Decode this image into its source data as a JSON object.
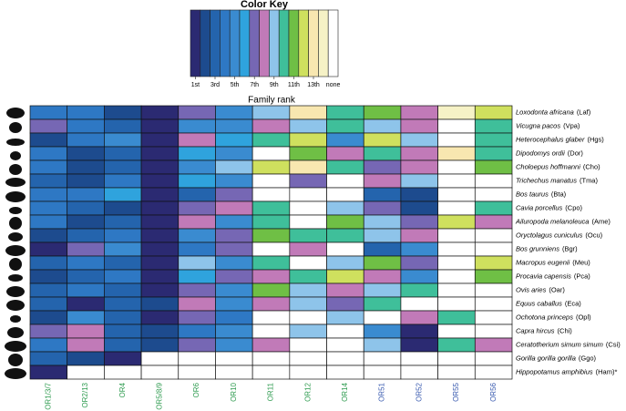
{
  "chart_data": {
    "type": "heatmap",
    "title": "Family rank",
    "colorscale": {
      "title": "Color Key",
      "colors": [
        "#2b2a72",
        "#1d4b8e",
        "#2464ad",
        "#2e78c4",
        "#3a8bd0",
        "#2fa3dd",
        "#7667b4",
        "#c17ab8",
        "#8ec4ea",
        "#3fbf9a",
        "#6fbf45",
        "#cfe05e",
        "#f8e7b0",
        "#f6f2c6"
      ],
      "none_color": "#ffffff",
      "ticks": [
        {
          "value": 1,
          "label": "1st"
        },
        {
          "value": 3,
          "label": "3rd"
        },
        {
          "value": 5,
          "label": "5th"
        },
        {
          "value": 7,
          "label": "7th"
        },
        {
          "value": 9,
          "label": "9th"
        },
        {
          "value": 11,
          "label": "11th"
        },
        {
          "value": 13,
          "label": "13th"
        }
      ],
      "none_label": "none"
    },
    "categories": [
      "OR1/3/7",
      "OR2/13",
      "OR4",
      "OR5/8/9",
      "OR6",
      "OR10",
      "OR11",
      "OR12",
      "OR14",
      "OR51",
      "OR52",
      "OR55",
      "OR56"
    ],
    "category_colors": [
      "#2e9b4f",
      "#2e9b4f",
      "#2e9b4f",
      "#2e9b4f",
      "#2e9b4f",
      "#2e9b4f",
      "#2e9b4f",
      "#2e9b4f",
      "#2e9b4f",
      "#3a5bb0",
      "#3a5bb0",
      "#3a5bb0",
      "#3a5bb0"
    ],
    "rows": [
      {
        "name": "Loxodonta africana",
        "code": "(Laf)"
      },
      {
        "name": "Vicugna pacos",
        "code": "(Vpa)"
      },
      {
        "name": "Heterocephalus glaber",
        "code": "(Hgs)"
      },
      {
        "name": "Dipodomys ordii",
        "code": "(Dor)"
      },
      {
        "name": "Choloepus hoffmanni",
        "code": "(Cho)"
      },
      {
        "name": "Trichechus manatus",
        "code": "(Tma)"
      },
      {
        "name": "Bos taurus",
        "code": "(Bta)"
      },
      {
        "name": "Cavia porcellus",
        "code": "(Cpo)"
      },
      {
        "name": "Ailuropoda melanoleuca",
        "code": "(Ame)"
      },
      {
        "name": "Oryctolagus cuniculus",
        "code": "(Ocu)"
      },
      {
        "name": "Bos grunniens",
        "code": "(Bgr)"
      },
      {
        "name": "Macropus eugenii",
        "code": "(Meu)"
      },
      {
        "name": "Procavia capensis",
        "code": "(Pca)"
      },
      {
        "name": "Ovis aries",
        "code": "(Oar)"
      },
      {
        "name": "Equus caballus",
        "code": "(Eca)"
      },
      {
        "name": "Ochotona princeps",
        "code": "(Opl)"
      },
      {
        "name": "Capra hircus",
        "code": "(Chi)"
      },
      {
        "name": "Ceratotherium simum simum",
        "code": "(Csi)"
      },
      {
        "name": "Gorilla gorilla gorilla",
        "code": "(Ggo)"
      },
      {
        "name": "Hippopotamus amphibius",
        "code": "(Ham)*"
      }
    ],
    "values": [
      [
        4,
        4,
        2,
        1,
        7,
        5,
        9,
        13,
        10,
        11,
        8,
        14,
        12
      ],
      [
        7,
        4,
        3,
        1,
        5,
        5,
        8,
        9,
        10,
        9,
        8,
        null,
        10
      ],
      [
        2,
        4,
        5,
        1,
        8,
        6,
        10,
        12,
        5,
        12,
        9,
        null,
        10
      ],
      [
        4,
        2,
        3,
        1,
        6,
        5,
        null,
        11,
        8,
        10,
        8,
        13,
        10
      ],
      [
        4,
        2,
        3,
        1,
        5,
        9,
        12,
        13,
        10,
        7,
        8,
        null,
        11
      ],
      [
        3,
        2,
        4,
        1,
        6,
        5,
        null,
        7,
        null,
        8,
        9,
        null,
        null
      ],
      [
        4,
        4,
        6,
        1,
        3,
        7,
        null,
        null,
        null,
        3,
        2,
        null,
        null
      ],
      [
        4,
        3,
        2,
        1,
        7,
        8,
        10,
        null,
        9,
        7,
        2,
        null,
        10
      ],
      [
        4,
        2,
        3,
        1,
        8,
        5,
        10,
        null,
        11,
        9,
        7,
        12,
        8
      ],
      [
        2,
        3,
        4,
        1,
        5,
        7,
        11,
        10,
        10,
        9,
        8,
        null,
        null
      ],
      [
        1,
        7,
        5,
        1,
        4,
        7,
        null,
        8,
        null,
        3,
        5,
        null,
        null
      ],
      [
        3,
        4,
        3,
        1,
        9,
        5,
        10,
        null,
        9,
        11,
        7,
        null,
        12
      ],
      [
        2,
        3,
        4,
        1,
        6,
        7,
        8,
        10,
        12,
        8,
        5,
        null,
        11
      ],
      [
        3,
        4,
        3,
        1,
        7,
        5,
        11,
        9,
        8,
        9,
        10,
        null,
        null
      ],
      [
        3,
        1,
        3,
        2,
        8,
        5,
        8,
        9,
        7,
        10,
        null,
        null,
        null
      ],
      [
        2,
        5,
        3,
        1,
        7,
        4,
        null,
        null,
        9,
        null,
        8,
        10,
        null
      ],
      [
        7,
        8,
        3,
        2,
        4,
        5,
        null,
        9,
        null,
        5,
        1,
        null,
        null
      ],
      [
        4,
        8,
        3,
        2,
        7,
        5,
        8,
        null,
        null,
        9,
        1,
        10,
        8
      ],
      [
        3,
        2,
        1,
        null,
        null,
        null,
        null,
        null,
        null,
        null,
        null,
        null,
        null
      ],
      [
        1,
        null,
        null,
        null,
        null,
        null,
        null,
        null,
        null,
        null,
        null,
        null,
        null
      ]
    ]
  }
}
